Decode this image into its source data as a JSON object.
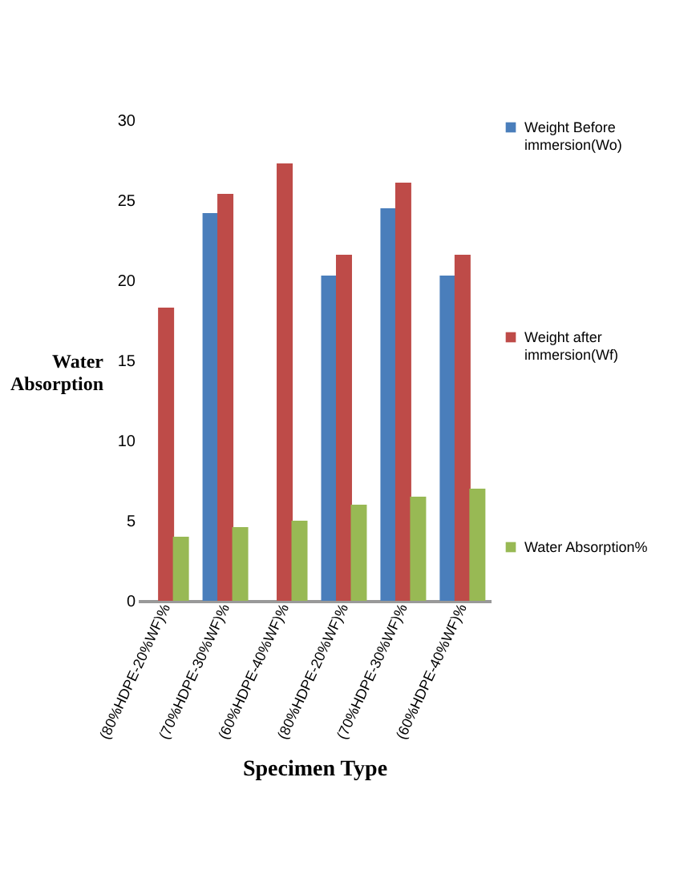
{
  "chart_data": {
    "type": "bar",
    "xlabel": "Specimen Type",
    "ylabel": "Water Absorption",
    "categories": [
      "(80%HDPE-20%WF)%",
      "(70%HDPE-30%WF)%",
      "(60%HDPE-40%WF)%",
      "(80%HDPE-20%WF)%",
      "(70%HDPE-30%WF)%",
      "(60%HDPE-40%WF)%"
    ],
    "series": [
      {
        "name": "Weight Before immersion(Wo)",
        "color": "#4a7ebb",
        "values": [
          null,
          24.2,
          null,
          20.3,
          24.5,
          20.3
        ]
      },
      {
        "name": "Weight after immersion(Wf)",
        "color": "#be4b48",
        "values": [
          18.3,
          25.4,
          27.3,
          21.6,
          26.1,
          21.6
        ]
      },
      {
        "name": "Water Absorption%",
        "color": "#98b954",
        "values": [
          4.0,
          4.6,
          5.0,
          6.0,
          6.5,
          7.0
        ]
      }
    ],
    "ylim": [
      0,
      30
    ],
    "yticks": [
      0,
      5,
      10,
      15,
      20,
      25,
      30
    ],
    "grid": false,
    "legend": "right"
  }
}
